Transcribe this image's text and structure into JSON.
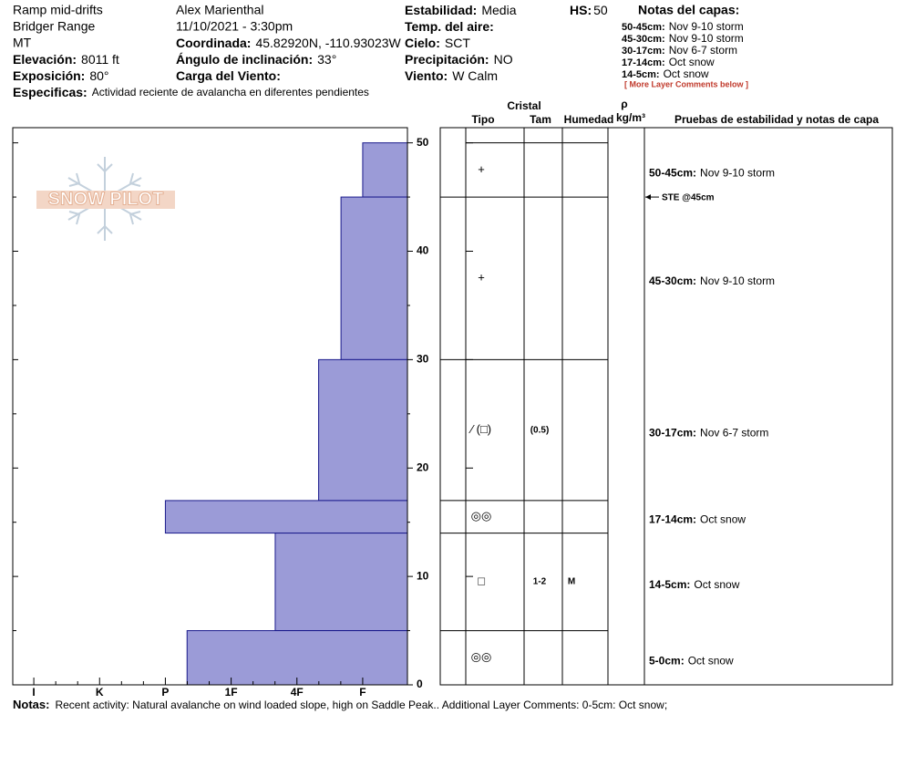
{
  "header": {
    "site": "Ramp mid-drifts",
    "range": "Bridger Range",
    "state": "MT",
    "elevation": {
      "label": "Elevación:",
      "value": "8011 ft"
    },
    "aspect": {
      "label": "Exposición:",
      "value": "80°"
    },
    "specifics": {
      "label": "Especificas:",
      "value": "Actividad reciente de avalancha en diferentes pendientes"
    },
    "observer": "Alex Marienthal",
    "datetime": "11/10/2021 - 3:30pm",
    "coordinates": {
      "label": "Coordinada:",
      "value": "45.82920N, -110.93023W"
    },
    "slope": {
      "label": "Ángulo de inclinación:",
      "value": "33°"
    },
    "wind_loading": {
      "label": "Carga del Viento:"
    },
    "stability": {
      "label": "Estabilidad:",
      "value": "Media"
    },
    "air_temp": {
      "label": "Temp. del aire:"
    },
    "sky": {
      "label": "Cielo:",
      "value": "SCT"
    },
    "precip": {
      "label": "Precipitación:",
      "value": "NO"
    },
    "wind": {
      "label": "Viento:",
      "value": "W Calm"
    },
    "hs": {
      "label": "HS:",
      "value": 50
    }
  },
  "layer_notes": {
    "title": "Notas del capas:",
    "items": [
      {
        "range": "50-45cm:",
        "text": "Nov 9-10 storm"
      },
      {
        "range": "45-30cm:",
        "text": "Nov 9-10 storm"
      },
      {
        "range": "30-17cm:",
        "text": "Nov 6-7 storm"
      },
      {
        "range": "17-14cm:",
        "text": "Oct snow"
      },
      {
        "range": "14-5cm:",
        "text": "Oct snow"
      }
    ],
    "more": "[ More Layer Comments below ]"
  },
  "logo": "SNOW PILOT",
  "columns": {
    "crystal": "Cristal",
    "type": "Tipo",
    "size": "Tam",
    "moisture": "Humedad",
    "density_symbol": "ρ",
    "density_unit": "kg/m³",
    "tests": "Pruebas de estabilidad y notas de capa"
  },
  "chart_data": {
    "type": "snow-profile",
    "color": "#9b9bd7",
    "x_reversed": true,
    "xlim": [
      0.32,
      6.32
    ],
    "xticks": [
      {
        "value": 6,
        "label": "I"
      },
      {
        "value": 5,
        "label": "K"
      },
      {
        "value": 4,
        "label": "P"
      },
      {
        "value": 3,
        "label": "1F"
      },
      {
        "value": 2,
        "label": "4F"
      },
      {
        "value": 1,
        "label": "F"
      }
    ],
    "ylim": [
      0,
      51.4
    ],
    "yticks": [
      0,
      10,
      20,
      30,
      40,
      50
    ],
    "layers": [
      {
        "top": 50,
        "bottom": 45,
        "hardness": 1,
        "grain": "+",
        "range": "50-45cm:",
        "comment": "Nov 9-10 storm"
      },
      {
        "top": 45,
        "bottom": 30,
        "hardness": 1.33,
        "grain": "+",
        "range": "45-30cm:",
        "comment": "Nov 9-10 storm"
      },
      {
        "top": 30,
        "bottom": 17,
        "hardness": 1.67,
        "grain": "⁄ (□)",
        "size": "(0.5)",
        "range": "30-17cm:",
        "comment": "Nov 6-7 storm"
      },
      {
        "top": 17,
        "bottom": 14,
        "hardness": 4,
        "grain": "◎◎",
        "range": "17-14cm:",
        "comment": "Oct snow"
      },
      {
        "top": 14,
        "bottom": 5,
        "hardness": 2.33,
        "grain": "□",
        "size": "1-2",
        "moisture": "M",
        "range": "14-5cm:",
        "comment": "Oct snow"
      },
      {
        "top": 5,
        "bottom": 0,
        "hardness": 3.67,
        "grain": "◎◎",
        "range": "5-0cm:",
        "comment": "Oct snow"
      }
    ],
    "tests": [
      {
        "text": "STE @45cm",
        "depth": 45
      }
    ]
  },
  "notes": {
    "label": "Notas:",
    "text": "Recent activity: Natural avalanche on wind loaded slope, high on Saddle Peak.. Additional Layer Comments: 0-5cm: Oct snow;"
  }
}
